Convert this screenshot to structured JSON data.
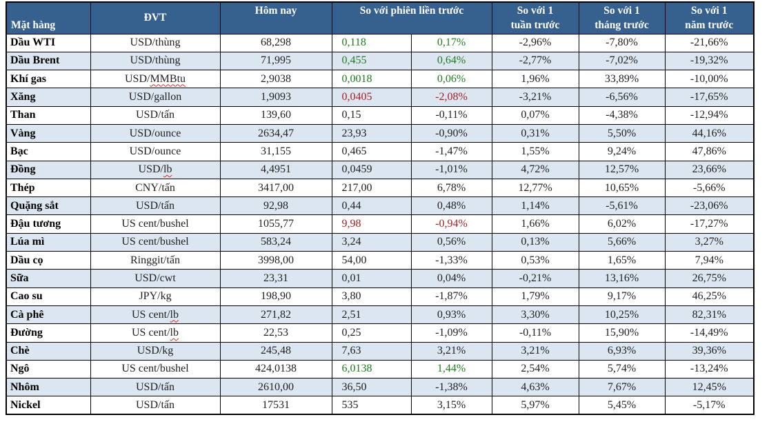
{
  "styles": {
    "header_bg": "#36608E",
    "stripe_bg": "#DCE6F1",
    "up_color": "#1E7B1E",
    "down_color": "#A32020",
    "text_color": "#1F1F1F"
  },
  "chart_data": {
    "type": "table",
    "header": {
      "commodity": "Mặt hàng",
      "unit": "ĐVT",
      "today": "Hôm nay",
      "prev_session": "So với phiên liền trước",
      "week": "So với 1\ntuần trước",
      "month": "So với 1\ntháng trước",
      "year": "So với 1\nnăm trước"
    },
    "columns": [
      "Mặt hàng",
      "ĐVT",
      "Hôm nay",
      "So với phiên liền trước (giá trị)",
      "So với phiên liền trước (%)",
      "So với 1 tuần trước",
      "So với 1 tháng trước",
      "So với 1 năm trước"
    ],
    "rows": [
      {
        "name": "Dầu WTI",
        "unit": "USD/thùng",
        "today": "68,298",
        "change": "0,118",
        "change_pct": "0,17%",
        "week": "-2,96%",
        "month": "-7,80%",
        "year": "-21,66%",
        "change_color": "up"
      },
      {
        "name": "Dầu Brent",
        "unit": "USD/thùng",
        "today": "71,995",
        "change": "0,455",
        "change_pct": "0,64%",
        "week": "-2,77%",
        "month": "-7,02%",
        "year": "-19,32%",
        "change_color": "up"
      },
      {
        "name": "Khí gas",
        "unit": "USD/MMBtu",
        "today": "2,9038",
        "change": "0,0018",
        "change_pct": "0,06%",
        "week": "1,96%",
        "month": "33,89%",
        "year": "-10,00%",
        "change_color": "up",
        "squiggle": "MMBtu"
      },
      {
        "name": "Xăng",
        "unit": "USD/gallon",
        "today": "1,9093",
        "change": "0,0405",
        "change_pct": "-2,08%",
        "week": "-3,21%",
        "month": "-6,56%",
        "year": "-17,65%",
        "change_color": "down"
      },
      {
        "name": "Than",
        "unit": "USD/tấn",
        "today": "139,60",
        "change": "0,15",
        "change_pct": "-0,11%",
        "week": "0,07%",
        "month": "-4,38%",
        "year": "-12,94%"
      },
      {
        "name": "Vàng",
        "unit": "USD/ounce",
        "today": "2634,47",
        "change": "23,93",
        "change_pct": "-0,90%",
        "week": "0,31%",
        "month": "5,50%",
        "year": "44,16%"
      },
      {
        "name": "Bạc",
        "unit": "USD/ounce",
        "today": "31,155",
        "change": "0,465",
        "change_pct": "-1,47%",
        "week": "1,55%",
        "month": "9,24%",
        "year": "47,86%"
      },
      {
        "name": "Đồng",
        "unit": "USD/lb",
        "today": "4,4951",
        "change": "0,0459",
        "change_pct": "-1,01%",
        "week": "4,72%",
        "month": "12,57%",
        "year": "23,66%",
        "squiggle": "lb"
      },
      {
        "name": "Thép",
        "unit": "CNY/tấn",
        "today": "3417,00",
        "change": "217,00",
        "change_pct": "6,78%",
        "week": "12,77%",
        "month": "10,65%",
        "year": "-5,66%"
      },
      {
        "name": "Quặng sắt",
        "unit": "USD/tấn",
        "today": "92,98",
        "change": "0,44",
        "change_pct": "0,48%",
        "week": "1,14%",
        "month": "-5,61%",
        "year": "-23,06%"
      },
      {
        "name": "Đậu tương",
        "unit": "US cent/bushel",
        "today": "1055,77",
        "change": "9,98",
        "change_pct": "-0,94%",
        "week": "1,66%",
        "month": "6,02%",
        "year": "-17,27%",
        "change_color": "down"
      },
      {
        "name": "Lúa mì",
        "unit": "US cent/bushel",
        "today": "583,24",
        "change": "3,24",
        "change_pct": "0,56%",
        "week": "0,13%",
        "month": "5,66%",
        "year": "3,27%"
      },
      {
        "name": "Dầu cọ",
        "unit": "Ringgit/tấn",
        "today": "3998,00",
        "change": "54,00",
        "change_pct": "-1,33%",
        "week": "0,53%",
        "month": "1,65%",
        "year": "7,94%"
      },
      {
        "name": "Sữa",
        "unit": "USD/cwt",
        "today": "23,31",
        "change": "0,01",
        "change_pct": "0,04%",
        "week": "-0,21%",
        "month": "13,16%",
        "year": "26,75%"
      },
      {
        "name": "Cao su",
        "unit": "JPY/kg",
        "today": "198,90",
        "change": "3,80",
        "change_pct": "-1,87%",
        "week": "1,79%",
        "month": "9,17%",
        "year": "46,25%"
      },
      {
        "name": "Cà phê",
        "unit": "US cent/lb",
        "today": "271,82",
        "change": "2,51",
        "change_pct": "0,93%",
        "week": "3,30%",
        "month": "10,25%",
        "year": "82,31%",
        "squiggle": "lb"
      },
      {
        "name": "Đường",
        "unit": "US cent/lb",
        "today": "22,53",
        "change": "0,25",
        "change_pct": "-1,09%",
        "week": "-0,11%",
        "month": "15,90%",
        "year": "-14,49%",
        "squiggle": "lb"
      },
      {
        "name": "Chè",
        "unit": "USD/kg",
        "today": "245,48",
        "change": "7,63",
        "change_pct": "3,21%",
        "week": "3,21%",
        "month": "6,93%",
        "year": "39,36%"
      },
      {
        "name": "Ngô",
        "unit": "US cent/bushel",
        "today": "424,0138",
        "change": "6,0138",
        "change_pct": "1,44%",
        "week": "2,54%",
        "month": "5,74%",
        "year": "-13,24%",
        "change_color": "up"
      },
      {
        "name": "Nhôm",
        "unit": "USD/tấn",
        "today": "2610,00",
        "change": "36,50",
        "change_pct": "-1,38%",
        "week": "4,63%",
        "month": "7,67%",
        "year": "12,45%"
      },
      {
        "name": "Nickel",
        "unit": "USD/tấn",
        "today": "17531",
        "change": "535",
        "change_pct": "3,15%",
        "week": "5,97%",
        "month": "5,45%",
        "year": "-5,17%"
      }
    ]
  }
}
